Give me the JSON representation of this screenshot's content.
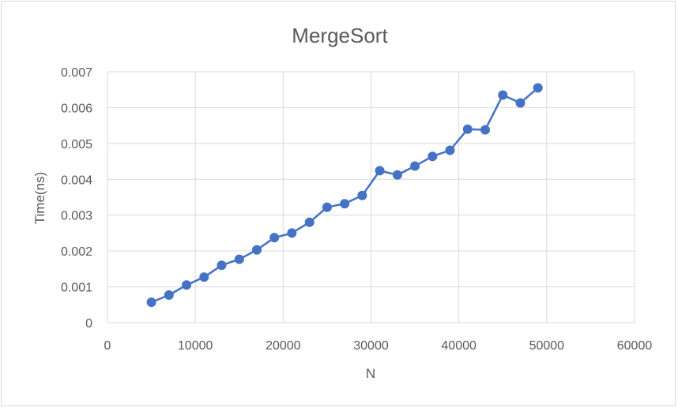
{
  "chart_data": {
    "type": "scatter",
    "title": "MergeSort",
    "xlabel": "N",
    "ylabel": "Time(ns)",
    "xlim": [
      0,
      60000
    ],
    "ylim": [
      0,
      0.007
    ],
    "x_ticks": [
      "0",
      "10000",
      "20000",
      "30000",
      "40000",
      "50000",
      "60000"
    ],
    "y_ticks": [
      "0",
      "0.001",
      "0.002",
      "0.003",
      "0.004",
      "0.005",
      "0.006",
      "0.007"
    ],
    "grid": true,
    "legend": "none",
    "line_style": "straight lines with markers",
    "series_color": "#4472C4",
    "grid_color": "#d9d9d9",
    "series": [
      {
        "x": [
          5000,
          7000,
          9000,
          11000,
          13000,
          15000,
          17000,
          19000,
          21000,
          23000,
          25000,
          27000,
          29000,
          31000,
          33000,
          35000,
          37000,
          39000,
          41000,
          43000,
          45000,
          47000,
          49000
        ],
        "y": [
          0.00057,
          0.00077,
          0.00105,
          0.00127,
          0.0016,
          0.00177,
          0.00203,
          0.00237,
          0.0025,
          0.0028,
          0.00322,
          0.00332,
          0.00355,
          0.00424,
          0.00412,
          0.00437,
          0.00464,
          0.00481,
          0.0054,
          0.00538,
          0.00635,
          0.00613,
          0.00655
        ]
      }
    ]
  }
}
